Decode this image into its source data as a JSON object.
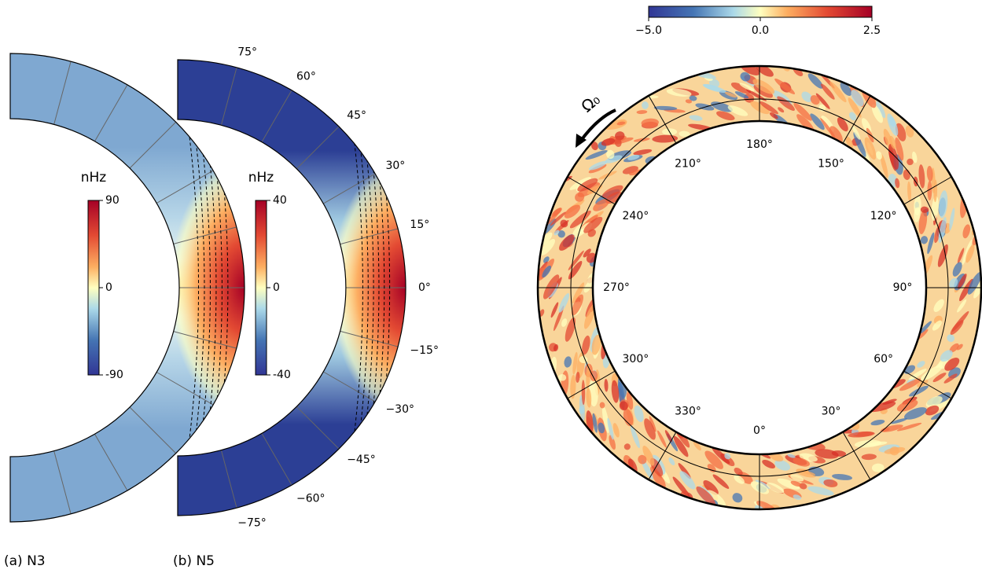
{
  "panels": [
    {
      "label": "(a) N3",
      "unit": "nHz",
      "colorbar_lim": [
        -90,
        90
      ],
      "colorbar_ticks": [
        90,
        0,
        -90
      ]
    },
    {
      "label": "(b) N5",
      "unit": "nHz",
      "colorbar_lim": [
        -40,
        40
      ],
      "colorbar_ticks": [
        40,
        0,
        -40
      ],
      "latitude_labels": [
        {
          "value": 75,
          "label": "75°"
        },
        {
          "value": 60,
          "label": "60°"
        },
        {
          "value": 45,
          "label": "45°"
        },
        {
          "value": 30,
          "label": "30°"
        },
        {
          "value": 15,
          "label": "15°"
        },
        {
          "value": 0,
          "label": "0°"
        },
        {
          "value": -15,
          "label": "−15°"
        },
        {
          "value": -30,
          "label": "−30°"
        },
        {
          "value": -45,
          "label": "−45°"
        },
        {
          "value": -60,
          "label": "−60°"
        },
        {
          "value": -75,
          "label": "−75°"
        }
      ]
    }
  ],
  "equatorial": {
    "rotation_label": "Ω₀",
    "colorbar_ticks": [
      {
        "value": -5,
        "label": "−5.0"
      },
      {
        "value": 0,
        "label": "0.0"
      },
      2.5
    ],
    "longitude_labels": [
      {
        "value": 0,
        "label": "0°"
      },
      {
        "value": 30,
        "label": "30°"
      },
      {
        "value": 60,
        "label": "60°"
      },
      {
        "value": 90,
        "label": "90°"
      },
      {
        "value": 120,
        "label": "120°"
      },
      {
        "value": 150,
        "label": "150°"
      },
      {
        "value": 180,
        "label": "180°"
      },
      {
        "value": 210,
        "label": "210°"
      },
      {
        "value": 240,
        "label": "240°"
      },
      {
        "value": 270,
        "label": "270°"
      },
      {
        "value": 300,
        "label": "300°"
      },
      {
        "value": 330,
        "label": "330°"
      }
    ]
  }
}
